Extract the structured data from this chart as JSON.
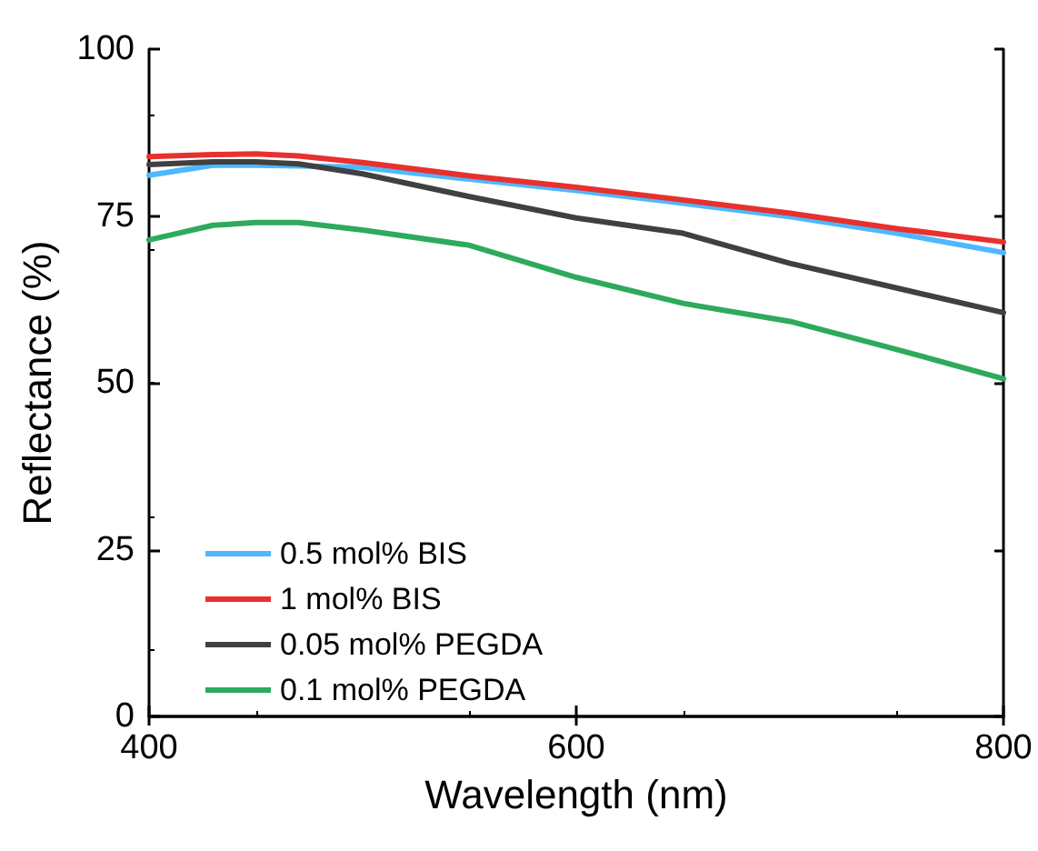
{
  "chart_data": {
    "type": "line",
    "xlabel": "Wavelength (nm)",
    "ylabel": "Reflectance (%)",
    "x": [
      400,
      430,
      450,
      470,
      500,
      550,
      600,
      650,
      700,
      750,
      800
    ],
    "series": [
      {
        "name": "0.5 mol% BIS",
        "color": "#4db8ff",
        "values": [
          81.1,
          82.6,
          82.6,
          82.5,
          82.3,
          80.5,
          78.8,
          76.9,
          74.9,
          72.4,
          69.5
        ]
      },
      {
        "name": "1 mol% BIS",
        "color": "#e8302e",
        "values": [
          83.9,
          84.2,
          84.3,
          84.0,
          83.0,
          81.0,
          79.3,
          77.4,
          75.4,
          73.1,
          71.1
        ]
      },
      {
        "name": "0.05 mol% PEGDA",
        "color": "#404040",
        "values": [
          82.7,
          83.1,
          83.1,
          82.8,
          81.3,
          77.9,
          74.7,
          72.4,
          67.9,
          64.2,
          60.5
        ]
      },
      {
        "name": "0.1 mol% PEGDA",
        "color": "#2eaa5c",
        "values": [
          71.4,
          73.6,
          74.0,
          74.0,
          72.9,
          70.6,
          65.8,
          61.9,
          59.2,
          55.0,
          50.6
        ]
      }
    ],
    "xlim": [
      400,
      800
    ],
    "xticks": [
      400,
      600,
      800
    ],
    "ylim": [
      0,
      100
    ],
    "yticks": [
      0,
      25,
      50,
      75,
      100
    ],
    "grid": false,
    "legend": "bottom left",
    "marker": "none",
    "line_style": "solid"
  }
}
